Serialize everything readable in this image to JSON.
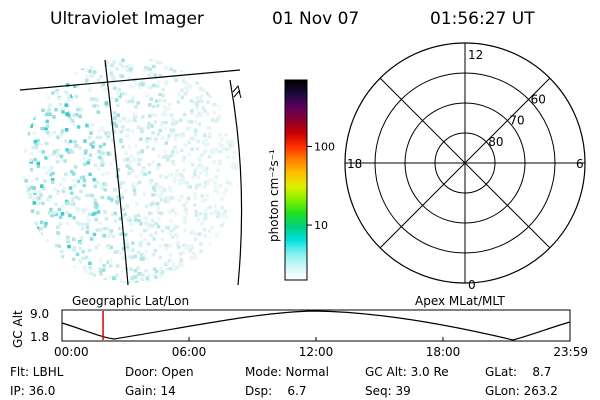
{
  "header": {
    "title": "Ultraviolet Imager",
    "date": "01 Nov 07",
    "time": "01:56:27 UT"
  },
  "colorbar": {
    "label": "photon cm⁻²s⁻¹",
    "ticks": [
      {
        "label": "100",
        "value": 100
      },
      {
        "label": "10",
        "value": 10
      }
    ],
    "range": [
      2,
      700
    ],
    "colors": [
      "#000000",
      "#1a0a3a",
      "#5a005a",
      "#8a0030",
      "#c80000",
      "#ff3000",
      "#ff8000",
      "#ffc000",
      "#e0f000",
      "#80f000",
      "#20e020",
      "#00d080",
      "#00e0e0",
      "#80f0f0",
      "#d0f8f8",
      "#ffffff"
    ]
  },
  "polar": {
    "mlt_labels": {
      "top": "12",
      "left": "18",
      "right": "6",
      "bottom": "0"
    },
    "lat_rings": [
      {
        "label": "60",
        "value": 60
      },
      {
        "label": "70",
        "value": 70
      },
      {
        "label": "80",
        "value": 80
      }
    ]
  },
  "altitude_plot": {
    "ylabel": "GC Alt",
    "ytick_top": "9.0",
    "ytick_bottom": "1.8",
    "left_label": "Geographic Lat/Lon",
    "right_label": "Apex MLat/MLT",
    "xticks": [
      "00:00",
      "06:00",
      "12:00",
      "18:00",
      "23:59"
    ],
    "marker_time_hours": 1.94
  },
  "info": {
    "flt": "Flt: LBHL",
    "ip": "IP: 36.0",
    "door": "Door: Open",
    "gain": "Gain: 14",
    "mode": "Mode: Normal",
    "dsp": "Dsp:    6.7",
    "gc_alt": "GC Alt: 3.0 Re",
    "seq": "Seq: 39",
    "glat": "GLat:    8.7",
    "glon": "GLon: 263.2"
  }
}
